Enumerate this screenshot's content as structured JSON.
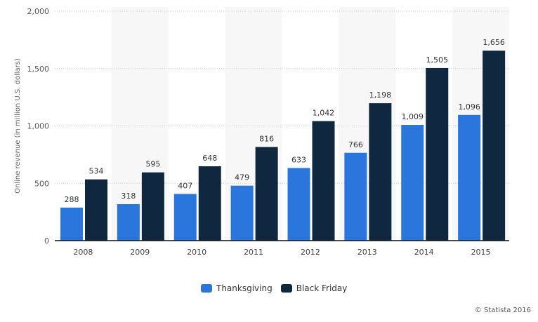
{
  "chart_data": {
    "type": "bar",
    "title": "",
    "xlabel": "",
    "ylabel": "Online revenue (in million U.S. dollars)",
    "ylim": [
      0,
      2000
    ],
    "yticks": [
      0,
      500,
      1000,
      1500,
      2000
    ],
    "ytick_labels": [
      "0",
      "500",
      "1,000",
      "1,500",
      "2,000"
    ],
    "categories": [
      "2008",
      "2009",
      "2010",
      "2011",
      "2012",
      "2013",
      "2014",
      "2015"
    ],
    "series": [
      {
        "name": "Thanksgiving",
        "color": "#2a76dd",
        "values": [
          288,
          318,
          407,
          479,
          633,
          766,
          1009,
          1096
        ],
        "labels": [
          "288",
          "318",
          "407",
          "479",
          "633",
          "766",
          "1,009",
          "1,096"
        ]
      },
      {
        "name": "Black Friday",
        "color": "#0f2840",
        "values": [
          534,
          595,
          648,
          816,
          1042,
          1198,
          1505,
          1656
        ],
        "labels": [
          "534",
          "595",
          "648",
          "816",
          "1,042",
          "1,198",
          "1,505",
          "1,656"
        ]
      }
    ],
    "grid": true,
    "legend_position": "bottom-center"
  },
  "credit": "© Statista 2016"
}
